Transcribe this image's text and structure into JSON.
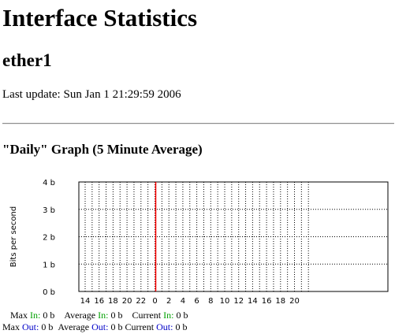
{
  "page": {
    "title": "Interface Statistics",
    "interface": "ether1",
    "last_update_label": "Last update:",
    "last_update_value": "Sun Jan 1 21:29:59 2006"
  },
  "graph": {
    "heading": "\"Daily\" Graph (5 Minute Average)"
  },
  "chart_data": {
    "type": "line",
    "ylabel": "Bits per second",
    "yticks": [
      "4 b",
      "3 b",
      "2 b",
      "1 b",
      "0 b"
    ],
    "ylim": [
      0,
      4
    ],
    "xticks": [
      "14",
      "16",
      "18",
      "20",
      "22",
      "0",
      "2",
      "4",
      "6",
      "8",
      "10",
      "12",
      "14",
      "16",
      "18",
      "20"
    ],
    "grid": true,
    "day_boundary_tick": "0",
    "series": [
      {
        "name": "In",
        "color": "#00a000",
        "values": [
          0,
          0
        ]
      },
      {
        "name": "Out",
        "color": "#0000c8",
        "values": [
          0,
          0
        ]
      }
    ]
  },
  "stats": {
    "max_label": "Max",
    "average_label": "Average",
    "current_label": "Current",
    "in_label": "In:",
    "out_label": "Out:",
    "max_in": "0 b",
    "avg_in": "0 b",
    "cur_in": "0 b",
    "max_out": "0 b",
    "avg_out": "0 b",
    "cur_out": "0 b"
  },
  "colors": {
    "in": "#00a000",
    "out": "#0000c8",
    "day_boundary": "#ff0000"
  }
}
